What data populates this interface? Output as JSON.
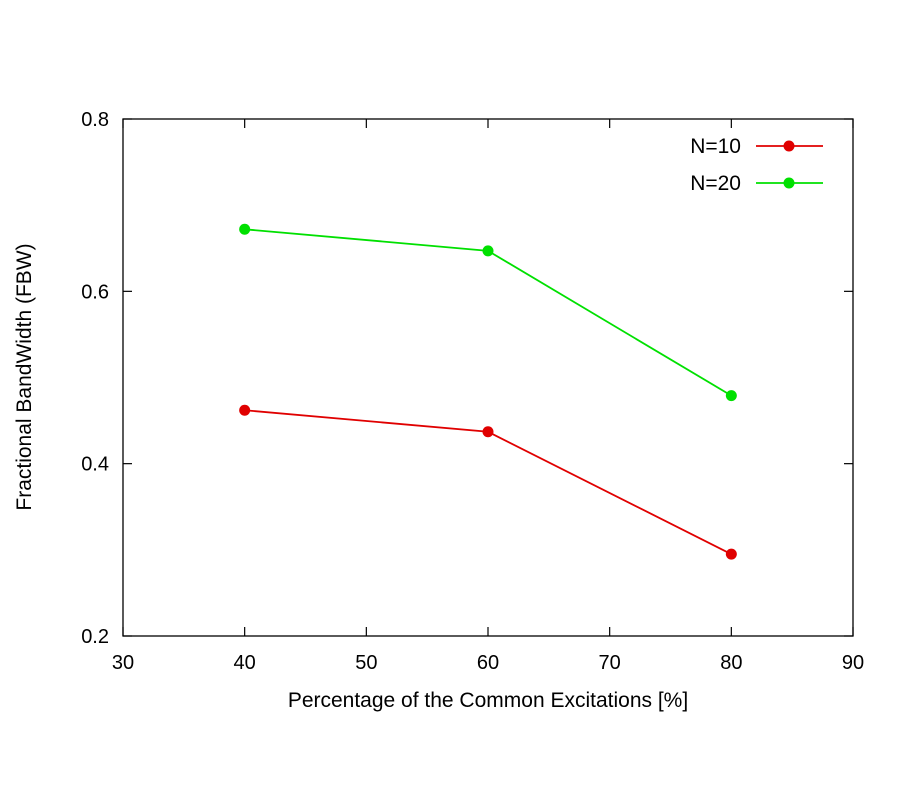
{
  "chart_data": {
    "type": "line",
    "title": "",
    "xlabel": "Percentage of the Common Excitations [%]",
    "ylabel": "Fractional BandWidth (FBW)",
    "xlim": [
      30,
      90
    ],
    "ylim": [
      0.2,
      0.8
    ],
    "xticks": [
      30,
      40,
      50,
      60,
      70,
      80,
      90
    ],
    "yticks": [
      0.2,
      0.4,
      0.6,
      0.8
    ],
    "xtick_labels": [
      "30",
      "40",
      "50",
      "60",
      "70",
      "80",
      "90"
    ],
    "ytick_labels": [
      "0.2",
      "0.4",
      "0.6",
      "0.8"
    ],
    "grid": false,
    "legend_position": "top-right",
    "x": [
      40,
      60,
      80
    ],
    "series": [
      {
        "name": "N=10",
        "color": "#e00000",
        "values": [
          0.462,
          0.437,
          0.295
        ]
      },
      {
        "name": "N=20",
        "color": "#00e000",
        "values": [
          0.672,
          0.647,
          0.479
        ]
      }
    ]
  }
}
